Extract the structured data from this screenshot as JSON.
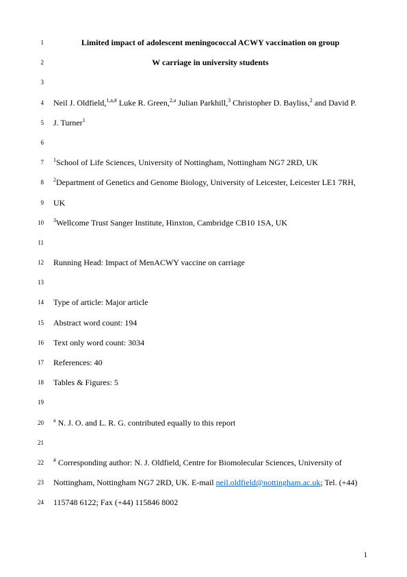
{
  "title_line1": "Limited impact of adolescent meningococcal ACWY vaccination on group",
  "title_line2": "W carriage in university students",
  "authors_line1_pre": "Neil J. Oldfield,",
  "authors_sup1": "1,a,#",
  "authors_line1_mid1": " Luke R. Green,",
  "authors_sup2": "2,a",
  "authors_line1_mid2": " Julian Parkhill,",
  "authors_sup3": "3",
  "authors_line1_mid3": " Christopher D. Bayliss,",
  "authors_sup4": "2",
  "authors_line1_mid4": " and David P.",
  "authors_line2_pre": "J. Turner",
  "authors_line2_sup": "1",
  "affil1_sup": "1",
  "affil1": "School of Life Sciences, University of Nottingham, Nottingham NG7 2RD, UK",
  "affil2_sup": "2",
  "affil2": "Department of Genetics and Genome Biology, University of Leicester, Leicester LE1 7RH,",
  "affil2b": "UK",
  "affil3_sup": "3",
  "affil3": "Wellcome Trust Sanger Institute, Hinxton, Cambridge CB10 1SA, UK",
  "running_head": "Running Head: Impact of MenACWY vaccine on carriage",
  "article_type": "Type of article: Major article",
  "abstract_wc": "Abstract word count: 194",
  "text_wc": "Text only word count: 3034",
  "refs": "References: 40",
  "tables_figs": "Tables & Figures: 5",
  "equal_contrib_sup": "a",
  "equal_contrib": " N. J. O. and L. R. G. contributed equally to this report",
  "corresp_sup": "#",
  "corresp1": " Corresponding author: N. J. Oldfield, Centre for Biomolecular Sciences, University of",
  "corresp2_pre": "Nottingham, Nottingham NG7 2RD, UK. E-mail ",
  "corresp_email": "neil.oldfield@nottingham.ac.uk",
  "corresp2_post": "; Tel. (+44)",
  "corresp3": "115748 6122; Fax (+44) 115846 8002",
  "line_nums": [
    "1",
    "2",
    "3",
    "4",
    "5",
    "6",
    "7",
    "8",
    "9",
    "10",
    "11",
    "12",
    "13",
    "14",
    "15",
    "16",
    "17",
    "18",
    "19",
    "20",
    "21",
    "22",
    "23",
    "24"
  ],
  "page_number": "1"
}
